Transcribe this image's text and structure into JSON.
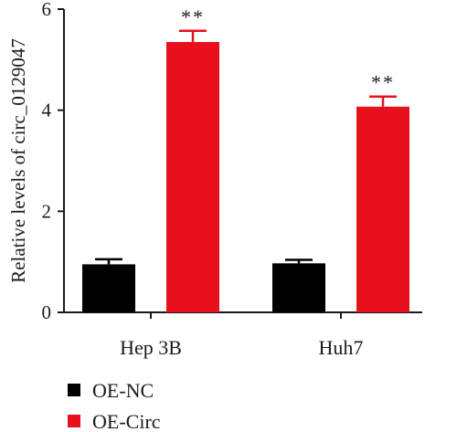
{
  "chart_data": {
    "type": "bar",
    "title": "",
    "xlabel": "",
    "ylabel": "Relative levels of circ_0129047",
    "ylim": [
      0,
      6
    ],
    "yticks": [
      "0",
      "2",
      "4",
      "6"
    ],
    "categories": [
      "Hep 3B",
      "Huh7"
    ],
    "series": [
      {
        "name": "OE-NC",
        "color": "#000000",
        "values": [
          0.95,
          0.97
        ],
        "errors": [
          0.1,
          0.07
        ],
        "annotations": [
          "",
          ""
        ]
      },
      {
        "name": "OE-Circ",
        "color": "#e8101c",
        "values": [
          5.35,
          4.07
        ],
        "errors": [
          0.22,
          0.2
        ],
        "annotations": [
          "**",
          "**"
        ]
      }
    ],
    "legend_position": "bottom-left",
    "grid": false
  }
}
